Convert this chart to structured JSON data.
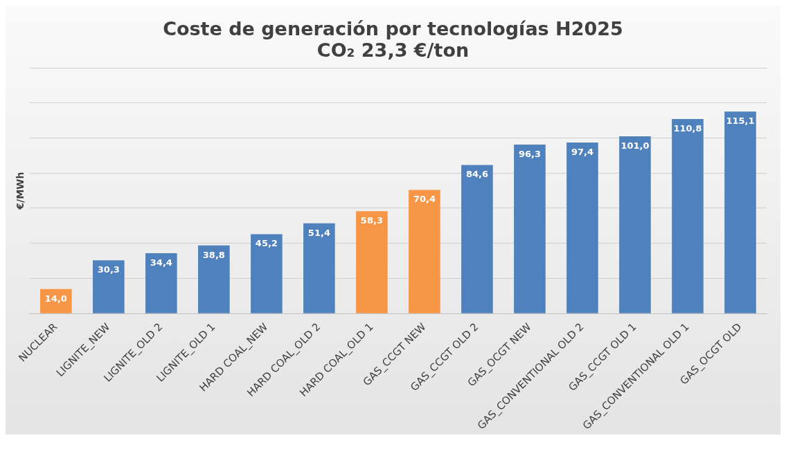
{
  "chart_data": {
    "type": "bar",
    "title": "Coste de generación por tecnologías H2025",
    "subtitle": "CO₂ 23,3 €/ton",
    "ylabel": "€/MWh",
    "categories": [
      "NUCLEAR",
      "LIGNITE_NEW",
      "LIGNITE_OLD 2",
      "LIGNITE_OLD 1",
      "HARD COAL_NEW",
      "HARD COAL_OLD 2",
      "HARD COAL_OLD 1",
      "GAS_CCGT NEW",
      "GAS_CCGT OLD 2",
      "GAS_OCGT NEW",
      "GAS_CONVENTIONAL OLD 2",
      "GAS_CCGT OLD 1",
      "GAS_CONVENTIONAL OLD 1",
      "GAS_OCGT OLD"
    ],
    "values": [
      14.0,
      30.3,
      34.4,
      38.8,
      45.2,
      51.4,
      58.3,
      70.4,
      84.6,
      96.3,
      97.4,
      101.0,
      110.8,
      115.1
    ],
    "value_labels": [
      "14,0",
      "30,3",
      "34,4",
      "38,8",
      "45,2",
      "51,4",
      "58,3",
      "70,4",
      "84,6",
      "96,3",
      "97,4",
      "101,0",
      "110,8",
      "115,1"
    ],
    "colors": [
      "#f79646",
      "#4f81bd",
      "#4f81bd",
      "#4f81bd",
      "#4f81bd",
      "#4f81bd",
      "#f79646",
      "#f79646",
      "#4f81bd",
      "#4f81bd",
      "#4f81bd",
      "#4f81bd",
      "#4f81bd",
      "#4f81bd"
    ],
    "ylim": [
      0,
      140
    ],
    "grid": "y",
    "tick_labels": "x",
    "legend": false
  }
}
